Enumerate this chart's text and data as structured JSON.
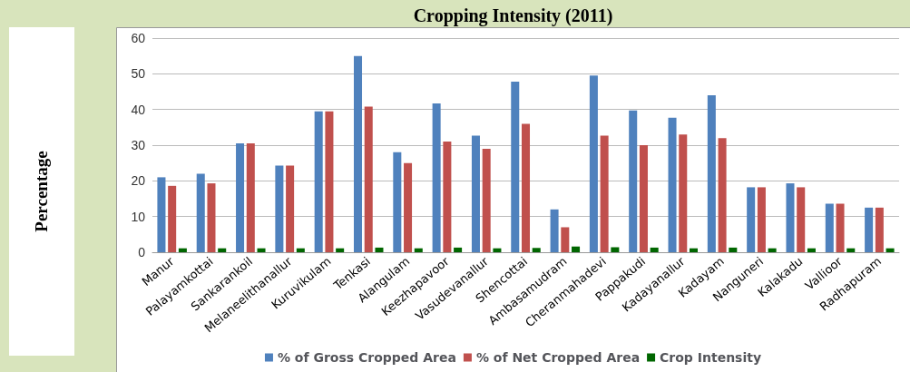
{
  "chart_data": {
    "type": "bar",
    "title": "Cropping Intensity (2011)",
    "ylabel": "Percentage",
    "categories": [
      "Manur",
      "Palayamkottai",
      "Sankarankoil",
      "Melaneelithanallur",
      "Kuruvikulam",
      "Tenkasi",
      "Alangulam",
      "Keezhapavoor",
      "Vasudevanallur",
      "Shencottai",
      "Ambasamudram",
      "Cheranmahadevi",
      "Pappakudi",
      "Kadayanallur",
      "Kadayam",
      "Nanguneri",
      "Kalakadu",
      "Vallioor",
      "Radhapuram"
    ],
    "series": [
      {
        "name": "% of Gross Cropped Area",
        "color": "#4f81bd",
        "values": [
          21,
          22,
          30.5,
          24.3,
          39.5,
          55,
          28,
          41.7,
          32.7,
          47.8,
          12,
          49.5,
          39.7,
          37.7,
          44,
          18.2,
          19.3,
          13.6,
          12.5
        ]
      },
      {
        "name": "% of Net Cropped Area",
        "color": "#c0504d",
        "values": [
          18.6,
          19.3,
          30.5,
          24.3,
          39.5,
          40.8,
          25,
          31,
          29,
          36,
          7,
          32.7,
          30,
          33,
          32,
          18.2,
          18.2,
          13.6,
          12.5
        ]
      },
      {
        "name": "Crop Intensity",
        "color": "#006600",
        "values": [
          1.1,
          1.1,
          1.1,
          1.1,
          1.1,
          1.3,
          1.1,
          1.3,
          1.1,
          1.2,
          1.6,
          1.4,
          1.3,
          1.1,
          1.3,
          1.1,
          1.1,
          1.1,
          1.1
        ]
      }
    ],
    "ylim": [
      0,
      60
    ],
    "yticks": [
      0,
      10,
      20,
      30,
      40,
      50,
      60
    ],
    "grid": "y",
    "legend": "bottom"
  }
}
